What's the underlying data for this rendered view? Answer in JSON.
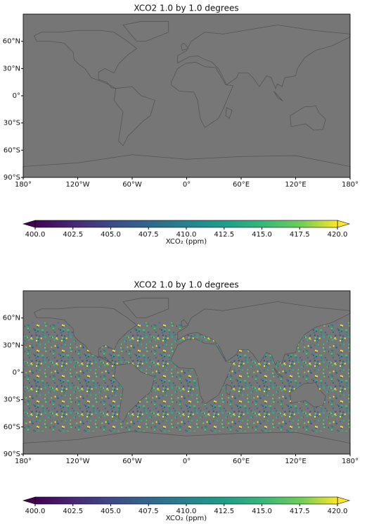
{
  "panels": [
    {
      "title": "XCO2 1.0 by 1.0 degrees",
      "lon_ticks": [
        {
          "value": -180,
          "label": "180°"
        },
        {
          "value": -120,
          "label": "120°W"
        },
        {
          "value": -60,
          "label": "60°W"
        },
        {
          "value": 0,
          "label": "0°"
        },
        {
          "value": 60,
          "label": "60°E"
        },
        {
          "value": 120,
          "label": "120°E"
        },
        {
          "value": 180,
          "label": "180°"
        }
      ],
      "lat_ticks": [
        {
          "value": 60,
          "label": "60°N"
        },
        {
          "value": 30,
          "label": "30°N"
        },
        {
          "value": 0,
          "label": "0°"
        },
        {
          "value": -30,
          "label": "30°S"
        },
        {
          "value": -60,
          "label": "60°S"
        },
        {
          "value": -90,
          "label": "90°S"
        }
      ],
      "colorbar": {
        "label": "XCO₂ (ppm)",
        "lim": [
          400,
          420
        ],
        "ticks": [
          {
            "value": 400,
            "label": "400.0"
          },
          {
            "value": 402.5,
            "label": "402.5"
          },
          {
            "value": 405,
            "label": "405.0"
          },
          {
            "value": 407.5,
            "label": "407.5"
          },
          {
            "value": 410,
            "label": "410.0"
          },
          {
            "value": 412.5,
            "label": "412.5"
          },
          {
            "value": 415,
            "label": "415.0"
          },
          {
            "value": 417.5,
            "label": "417.5"
          },
          {
            "value": 420,
            "label": "420.0"
          }
        ]
      }
    },
    {
      "title": "XCO2 1.0 by 1.0 degrees",
      "lon_ticks": [
        {
          "value": -180,
          "label": "180°"
        },
        {
          "value": -120,
          "label": "120°W"
        },
        {
          "value": -60,
          "label": "60°W"
        },
        {
          "value": 0,
          "label": "0°"
        },
        {
          "value": 60,
          "label": "60°E"
        },
        {
          "value": 120,
          "label": "120°E"
        },
        {
          "value": 180,
          "label": "180°"
        }
      ],
      "lat_ticks": [
        {
          "value": 60,
          "label": "60°N"
        },
        {
          "value": 30,
          "label": "30°N"
        },
        {
          "value": 0,
          "label": "0°"
        },
        {
          "value": -30,
          "label": "30°S"
        },
        {
          "value": -60,
          "label": "60°S"
        },
        {
          "value": -90,
          "label": "90°S"
        }
      ],
      "colorbar": {
        "label": "XCO₂ (ppm)",
        "lim": [
          400,
          420
        ],
        "ticks": [
          {
            "value": 400,
            "label": "400.0"
          },
          {
            "value": 402.5,
            "label": "402.5"
          },
          {
            "value": 405,
            "label": "405.0"
          },
          {
            "value": 407.5,
            "label": "407.5"
          },
          {
            "value": 410,
            "label": "410.0"
          },
          {
            "value": 412.5,
            "label": "412.5"
          },
          {
            "value": 415,
            "label": "415.0"
          },
          {
            "value": 417.5,
            "label": "417.5"
          },
          {
            "value": 420,
            "label": "420.0"
          }
        ]
      }
    }
  ]
}
